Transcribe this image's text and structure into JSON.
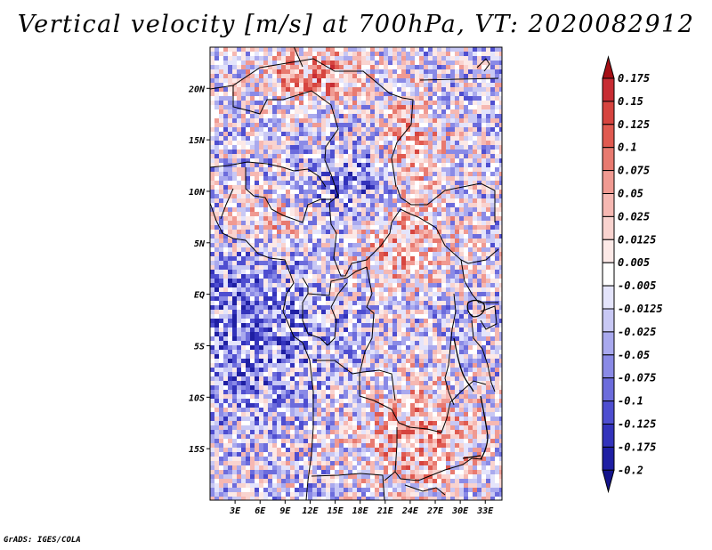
{
  "title": "Vertical velocity [m/s] at 700hPa, VT: 2020082912",
  "credit": "GrADS: IGES/COLA",
  "map": {
    "lon_range": [
      0,
      35
    ],
    "lat_range": [
      -20,
      24
    ],
    "lat_ticks": [
      {
        "value": 20,
        "label": "20N"
      },
      {
        "value": 15,
        "label": "15N"
      },
      {
        "value": 10,
        "label": "10N"
      },
      {
        "value": 5,
        "label": "5N"
      },
      {
        "value": 0,
        "label": "EQ"
      },
      {
        "value": -5,
        "label": "5S"
      },
      {
        "value": -10,
        "label": "10S"
      },
      {
        "value": -15,
        "label": "15S"
      }
    ],
    "lon_ticks": [
      {
        "value": 3,
        "label": "3E"
      },
      {
        "value": 6,
        "label": "6E"
      },
      {
        "value": 9,
        "label": "9E"
      },
      {
        "value": 12,
        "label": "12E"
      },
      {
        "value": 15,
        "label": "15E"
      },
      {
        "value": 18,
        "label": "18E"
      },
      {
        "value": 21,
        "label": "21E"
      },
      {
        "value": 24,
        "label": "24E"
      },
      {
        "value": 27,
        "label": "27E"
      },
      {
        "value": 30,
        "label": "30E"
      },
      {
        "value": 33,
        "label": "33E"
      }
    ]
  },
  "colorbar": {
    "levels": [
      {
        "label": "0.175",
        "color": "#b2182b"
      },
      {
        "label": "0.15",
        "color": "#c72c33"
      },
      {
        "label": "0.125",
        "color": "#d6443f"
      },
      {
        "label": "0.1",
        "color": "#e05a50"
      },
      {
        "label": "0.075",
        "color": "#e87a70"
      },
      {
        "label": "0.05",
        "color": "#f09a92"
      },
      {
        "label": "0.025",
        "color": "#f6b8b2"
      },
      {
        "label": "0.0125",
        "color": "#f9d3cf"
      },
      {
        "label": "0.005",
        "color": "#fce9e7"
      },
      {
        "label": "-0.005",
        "color": "#ffffff"
      },
      {
        "label": "-0.0125",
        "color": "#e4e4fb"
      },
      {
        "label": "-0.025",
        "color": "#c8c8f4"
      },
      {
        "label": "-0.05",
        "color": "#a9a9ee"
      },
      {
        "label": "-0.075",
        "color": "#8a8ae6"
      },
      {
        "label": "-0.1",
        "color": "#6c6cdc"
      },
      {
        "label": "-0.125",
        "color": "#4e4ed0"
      },
      {
        "label": "-0.175",
        "color": "#3333bb"
      },
      {
        "label": "-0.2",
        "color": "#1f1fa3"
      }
    ],
    "top_color": "#a50f15",
    "bottom_color": "#14148c"
  }
}
